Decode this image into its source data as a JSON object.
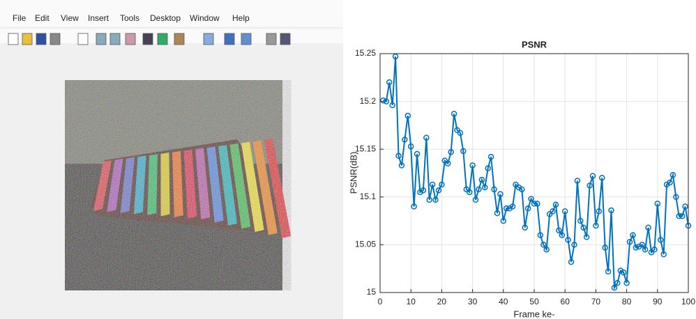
{
  "menu": [
    "File",
    "Edit",
    "View",
    "Insert",
    "Tools",
    "Desktop",
    "Window",
    "Help"
  ],
  "chart_data": {
    "type": "line",
    "title": "PSNR",
    "x_label": "Frame ke-",
    "y_label": "PSNR(dB)",
    "x": [
      1,
      2,
      3,
      4,
      5,
      6,
      7,
      8,
      9,
      10,
      11,
      12,
      13,
      14,
      15,
      16,
      17,
      18,
      19,
      20,
      21,
      22,
      23,
      24,
      25,
      26,
      27,
      28,
      29,
      30,
      31,
      32,
      33,
      34,
      35,
      36,
      37,
      38,
      39,
      40,
      41,
      42,
      43,
      44,
      45,
      46,
      47,
      48,
      49,
      50,
      51,
      52,
      53,
      54,
      55,
      56,
      57,
      58,
      59,
      60,
      61,
      62,
      63,
      64,
      65,
      66,
      67,
      68,
      69,
      70,
      71,
      72,
      73,
      74,
      75,
      76,
      77,
      78,
      79,
      80,
      81,
      82,
      83,
      84,
      85,
      86,
      87,
      88,
      89,
      90,
      91,
      92,
      93,
      94,
      95,
      96,
      97,
      98,
      99,
      100
    ],
    "values": [
      15.201,
      15.2,
      15.22,
      15.196,
      15.247,
      15.143,
      15.133,
      15.16,
      15.185,
      15.153,
      15.09,
      15.145,
      15.105,
      15.107,
      15.162,
      15.097,
      15.113,
      15.097,
      15.107,
      15.113,
      15.138,
      15.135,
      15.147,
      15.187,
      15.17,
      15.167,
      15.148,
      15.108,
      15.105,
      15.133,
      15.097,
      15.108,
      15.118,
      15.11,
      15.13,
      15.142,
      15.108,
      15.083,
      15.103,
      15.075,
      15.088,
      15.088,
      15.09,
      15.113,
      15.11,
      15.108,
      15.068,
      15.088,
      15.098,
      15.093,
      15.093,
      15.06,
      15.05,
      15.045,
      15.082,
      15.085,
      15.092,
      15.065,
      15.06,
      15.085,
      15.055,
      15.032,
      15.05,
      15.117,
      15.075,
      15.068,
      15.058,
      15.112,
      15.122,
      15.07,
      15.085,
      15.12,
      15.047,
      15.022,
      15.086,
      15.005,
      15.01,
      15.023,
      15.021,
      15.01,
      15.053,
      15.06,
      15.047,
      15.048,
      15.05,
      15.045,
      15.068,
      15.042,
      15.045,
      15.093,
      15.055,
      15.04,
      15.113,
      15.115,
      15.123,
      15.1,
      15.08,
      15.08,
      15.09,
      15.07
    ],
    "color": "#0072bd",
    "xlim": [
      0,
      100
    ],
    "ylim": [
      15,
      15.25
    ],
    "xticks": [
      0,
      10,
      20,
      30,
      40,
      50,
      60,
      70,
      80,
      90,
      100
    ],
    "yticks": [
      15,
      15.05,
      15.1,
      15.15,
      15.2,
      15.25
    ],
    "grid": true
  }
}
